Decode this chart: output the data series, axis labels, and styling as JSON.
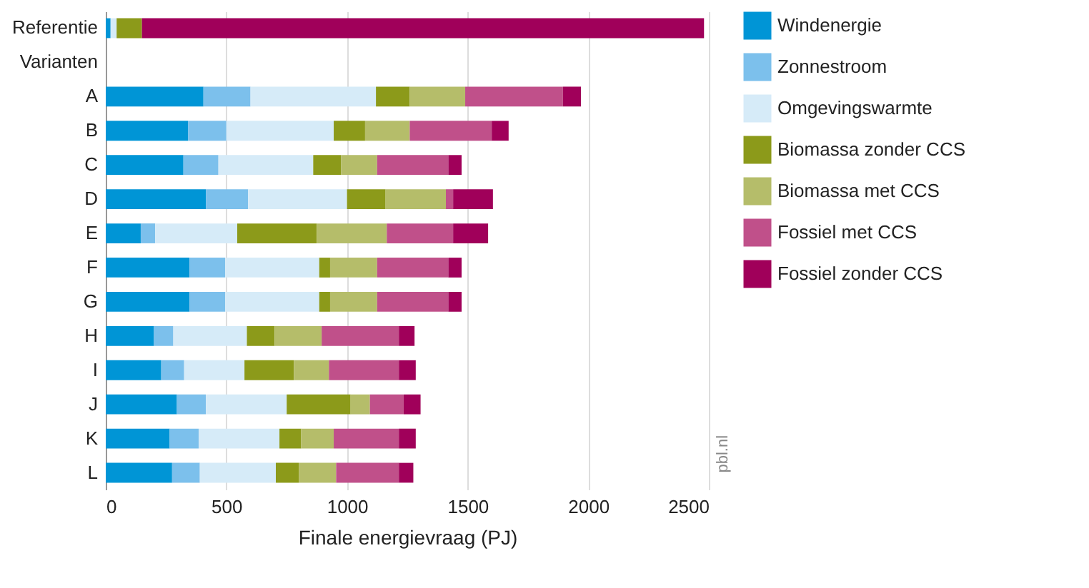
{
  "chart_data": {
    "type": "bar",
    "orientation": "horizontal",
    "stacked": true,
    "xlabel": "Finale energievraag (PJ)",
    "categories": [
      "Referentie",
      "Varianten",
      "A",
      "B",
      "C",
      "D",
      "E",
      "F",
      "G",
      "H",
      "I",
      "J",
      "K",
      "L"
    ],
    "series": [
      {
        "name": "Windenergie",
        "color": "#0095d6",
        "values": [
          20,
          null,
          405,
          342,
          322,
          415,
          145,
          347,
          347,
          200,
          230,
          295,
          265,
          275
        ]
      },
      {
        "name": "Zonnestroom",
        "color": "#7cc0ec",
        "values": [
          0,
          null,
          195,
          158,
          145,
          175,
          60,
          148,
          148,
          80,
          95,
          120,
          120,
          115
        ]
      },
      {
        "name": "Omgevingswarmte",
        "color": "#d6ebf8",
        "values": [
          25,
          null,
          520,
          445,
          393,
          410,
          340,
          390,
          390,
          305,
          250,
          335,
          335,
          315
        ]
      },
      {
        "name": "Biomassa zonder CCS",
        "color": "#8c9a1a",
        "values": [
          105,
          null,
          140,
          130,
          115,
          160,
          330,
          45,
          45,
          115,
          205,
          265,
          90,
          95
        ]
      },
      {
        "name": "Biomassa met CCS",
        "color": "#b5bd6a",
        "values": [
          0,
          null,
          230,
          185,
          150,
          250,
          290,
          195,
          195,
          195,
          145,
          80,
          135,
          155
        ]
      },
      {
        "name": "Fossiel met CCS",
        "color": "#c0508a",
        "values": [
          0,
          null,
          405,
          340,
          295,
          30,
          275,
          295,
          295,
          320,
          290,
          140,
          270,
          260
        ]
      },
      {
        "name": "Fossiel zonder CCS",
        "color": "#a0005a",
        "values": [
          2330,
          null,
          75,
          70,
          55,
          165,
          145,
          55,
          55,
          65,
          70,
          70,
          70,
          60
        ]
      }
    ],
    "xlim": [
      0,
      2500
    ],
    "xticks": [
      0,
      500,
      1000,
      1500,
      2000,
      2500
    ],
    "grid": "x",
    "legend": "right",
    "annotations": [
      "pbl.nl"
    ]
  }
}
